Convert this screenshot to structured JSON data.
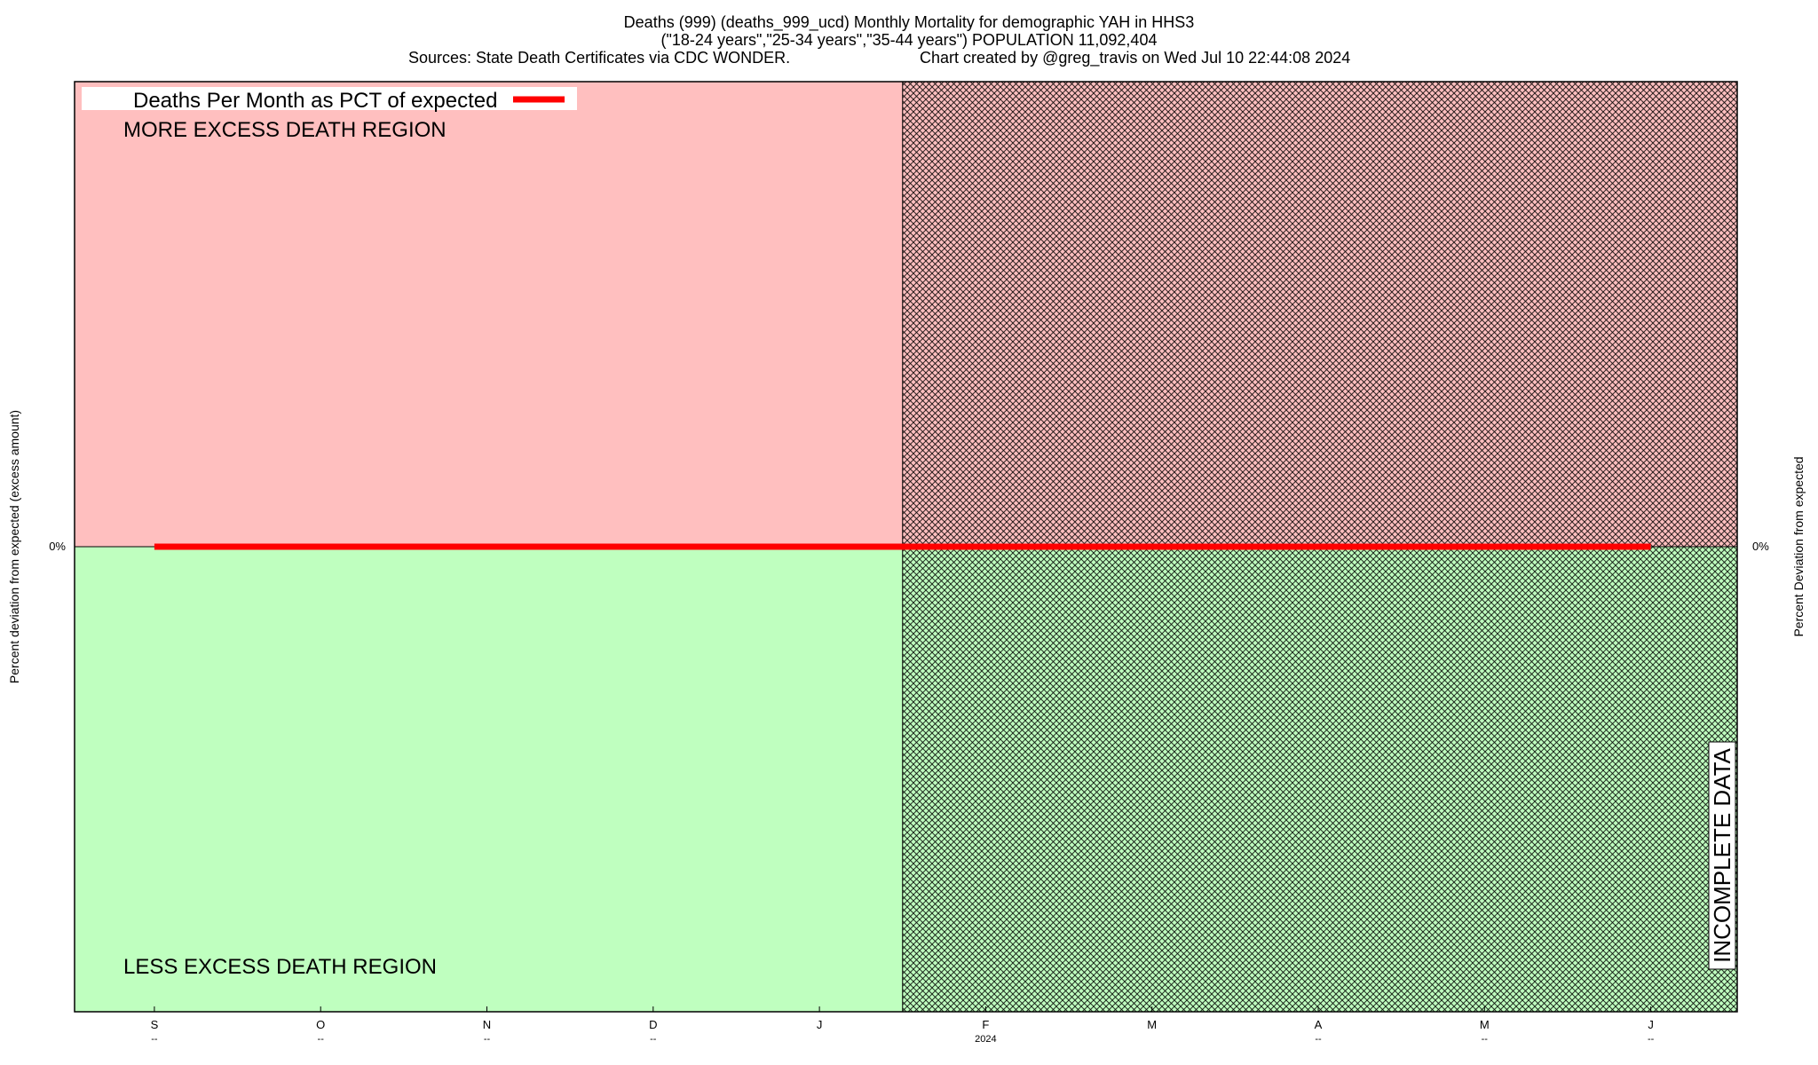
{
  "chart_data": {
    "type": "line",
    "title": "Deaths (999) (deaths_999_ucd) Monthly Mortality for demographic YAH in HHS3",
    "subtitle": "(\"18-24 years\",\"25-34 years\",\"35-44 years\") POPULATION 11,092,404",
    "sources": "Sources: State Death Certificates via CDC WONDER.",
    "credit": "Chart created by @greg_travis on Wed Jul 10 22:44:08 2024",
    "ylabel_left": "Percent deviation from expected (excess amount)",
    "ylabel_right": "Percent Deviation from expected",
    "y_zero_label_left": "0%",
    "y_zero_label_right": "0%",
    "x_ticks": [
      {
        "label": "S",
        "sub": "--"
      },
      {
        "label": "O",
        "sub": "--"
      },
      {
        "label": "N",
        "sub": "--"
      },
      {
        "label": "D",
        "sub": "--"
      },
      {
        "label": "J",
        "sub": ""
      },
      {
        "label": "F",
        "sub": "2024"
      },
      {
        "label": "M",
        "sub": ""
      },
      {
        "label": "A",
        "sub": "--"
      },
      {
        "label": "M",
        "sub": "--"
      },
      {
        "label": "J",
        "sub": "--"
      }
    ],
    "xlim": [
      -0.48,
      9.52
    ],
    "ylim": [
      -100,
      100
    ],
    "incomplete_from": 4.5,
    "series": [
      {
        "name": "Deaths Per Month as PCT of expected",
        "color": "#ff0000",
        "x": [
          0,
          1,
          2,
          3,
          4,
          5,
          6,
          7,
          8,
          9
        ],
        "values": [
          0,
          0,
          0,
          0,
          0,
          0,
          0,
          0,
          0,
          0
        ]
      }
    ],
    "region_upper_label": "MORE EXCESS DEATH REGION",
    "region_lower_label": "LESS EXCESS DEATH REGION",
    "incomplete_label": "INCOMPLETE DATA",
    "legend_position": "top-left",
    "colors": {
      "upper_region": "#ffbfbf",
      "lower_region": "#bfffbf",
      "hatch": "#000000",
      "line": "#ff0000"
    }
  }
}
